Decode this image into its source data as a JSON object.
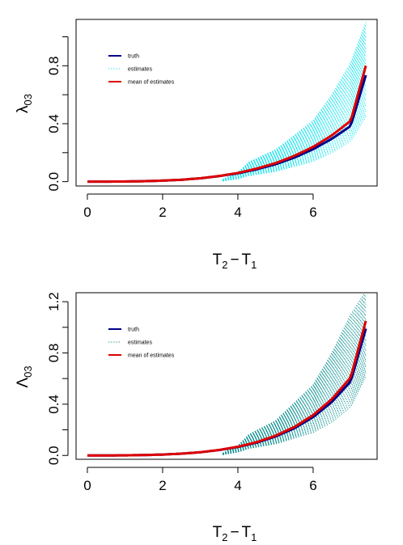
{
  "chart_data": [
    {
      "type": "line",
      "title": "",
      "xlabel": "T",
      "xlabel_sub_a": "2",
      "xlabel_op": "−",
      "xlabel_sub_b": "1",
      "ylabel": "λ",
      "ylabel_sub": "03",
      "xlim": [
        -0.3,
        7.7
      ],
      "ylim": [
        -0.03,
        1.12
      ],
      "xticks": [
        0,
        2,
        4,
        6
      ],
      "xtick_labels": [
        "0",
        "2",
        "4",
        "6"
      ],
      "yticks": [
        0,
        0.2,
        0.4,
        0.6,
        0.8,
        1.0
      ],
      "ytick_labels": [
        "0.0",
        "",
        "0.4",
        "",
        "0.8",
        ""
      ],
      "grid": false,
      "legend_position": "top-left",
      "legend": [
        {
          "label": "truth",
          "style": "solid",
          "color": "#00008b"
        },
        {
          "label": "estimates",
          "style": "dotted",
          "color": "#00e5ee"
        },
        {
          "label": "mean of estimates",
          "style": "solid",
          "color": "#dd0000"
        }
      ],
      "series": [
        {
          "name": "truth",
          "color": "#00008b",
          "style": "solid",
          "x": [
            0,
            0.5,
            1,
            1.5,
            2,
            2.5,
            3,
            3.5,
            4,
            4.5,
            5,
            5.5,
            6,
            6.5,
            7,
            7.4
          ],
          "y": [
            0,
            0.0002,
            0.001,
            0.003,
            0.007,
            0.013,
            0.023,
            0.038,
            0.058,
            0.085,
            0.12,
            0.166,
            0.224,
            0.296,
            0.385,
            0.735
          ]
        },
        {
          "name": "mean of estimates",
          "color": "#dd0000",
          "style": "solid",
          "x": [
            0,
            0.5,
            1,
            1.5,
            2,
            2.5,
            3,
            3.5,
            4,
            4.5,
            5,
            5.5,
            6,
            6.5,
            7,
            7.4
          ],
          "y": [
            0,
            0.0002,
            0.001,
            0.003,
            0.007,
            0.013,
            0.023,
            0.039,
            0.06,
            0.09,
            0.128,
            0.178,
            0.24,
            0.32,
            0.42,
            0.8
          ]
        },
        {
          "name": "estimates",
          "color": "#00e5ee",
          "style": "dotted",
          "band_x": [
            4,
            5,
            6,
            6.5,
            7,
            7.4
          ],
          "band_low": [
            0.03,
            0.07,
            0.14,
            0.2,
            0.28,
            0.45
          ],
          "band_high": [
            0.1,
            0.22,
            0.42,
            0.6,
            0.82,
            1.1
          ]
        }
      ]
    },
    {
      "type": "line",
      "title": "",
      "xlabel": "T",
      "xlabel_sub_a": "2",
      "xlabel_op": "−",
      "xlabel_sub_b": "1",
      "ylabel": "Λ",
      "ylabel_sub": "03",
      "xlim": [
        -0.3,
        7.7
      ],
      "ylim": [
        -0.03,
        1.27
      ],
      "xticks": [
        0,
        2,
        4,
        6
      ],
      "xtick_labels": [
        "0",
        "2",
        "4",
        "6"
      ],
      "yticks": [
        0,
        0.2,
        0.4,
        0.6,
        0.8,
        1.0,
        1.2
      ],
      "ytick_labels": [
        "0.0",
        "",
        "0.4",
        "",
        "0.8",
        "",
        "1.2"
      ],
      "grid": false,
      "legend_position": "top-left",
      "legend": [
        {
          "label": "truth",
          "style": "solid",
          "color": "#00008b"
        },
        {
          "label": "estimates",
          "style": "dotted",
          "color": "#008b8b"
        },
        {
          "label": "mean of estimates",
          "style": "solid",
          "color": "#dd0000"
        }
      ],
      "series": [
        {
          "name": "truth",
          "color": "#00008b",
          "style": "solid",
          "x": [
            0,
            0.5,
            1,
            1.5,
            2,
            2.5,
            3,
            3.5,
            4,
            4.5,
            5,
            5.5,
            6,
            6.5,
            7,
            7.4
          ],
          "y": [
            0,
            0.0002,
            0.001,
            0.003,
            0.007,
            0.014,
            0.025,
            0.042,
            0.066,
            0.1,
            0.148,
            0.212,
            0.3,
            0.418,
            0.578,
            0.99
          ]
        },
        {
          "name": "mean of estimates",
          "color": "#dd0000",
          "style": "solid",
          "x": [
            0,
            0.5,
            1,
            1.5,
            2,
            2.5,
            3,
            3.5,
            4,
            4.5,
            5,
            5.5,
            6,
            6.5,
            7,
            7.4
          ],
          "y": [
            0,
            0.0002,
            0.001,
            0.003,
            0.007,
            0.014,
            0.025,
            0.043,
            0.068,
            0.104,
            0.154,
            0.222,
            0.315,
            0.44,
            0.61,
            1.05
          ]
        },
        {
          "name": "estimates",
          "color": "#008b8b",
          "style": "dotted",
          "band_x": [
            4,
            5,
            6,
            6.5,
            7,
            7.4
          ],
          "band_low": [
            0.04,
            0.09,
            0.18,
            0.26,
            0.38,
            0.62
          ],
          "band_high": [
            0.12,
            0.27,
            0.55,
            0.8,
            1.1,
            1.28
          ]
        }
      ]
    }
  ]
}
